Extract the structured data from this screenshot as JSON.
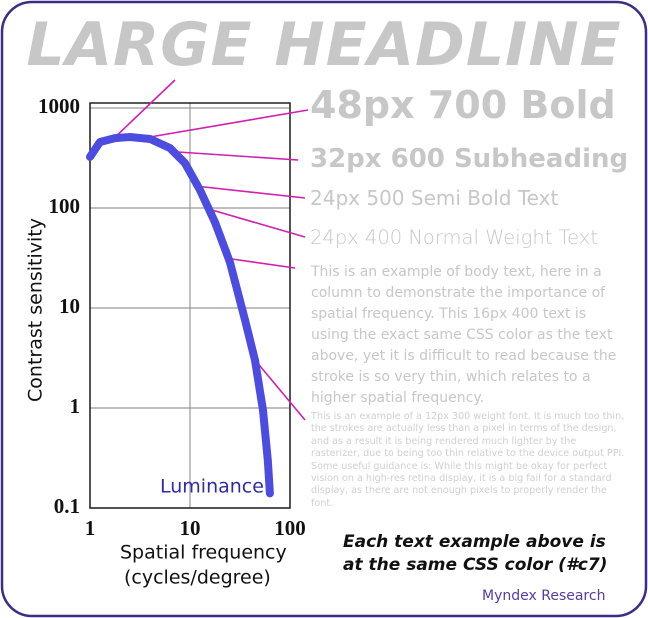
{
  "chart_data": {
    "type": "line",
    "xlabel": [
      "Spatial frequency",
      "(cycles/degree)"
    ],
    "ylabel": "Contrast sensitivity",
    "x": [
      1,
      1.26,
      1.78,
      2.5,
      4,
      6.3,
      8.9,
      12.6,
      17.8,
      25,
      35.5,
      44.7,
      53.7,
      60,
      63
    ],
    "series": [
      {
        "name": "Luminance",
        "color": "#4c4ce0",
        "values": [
          324,
          457,
          500,
          513,
          490,
          398,
          282,
          151,
          72,
          29,
          7.6,
          3,
          0.95,
          0.3,
          0.14
        ]
      }
    ],
    "xlim": [
      1,
      100
    ],
    "ylim": [
      0.1,
      1000
    ],
    "xticks": [
      1,
      10,
      100
    ],
    "yticks": [
      0.1,
      1,
      10,
      100,
      1000
    ],
    "xscale": "log",
    "yscale": "log",
    "grid": true
  },
  "headline": "LARGE HEADLINE",
  "samples": [
    "48px 700 Bold",
    "32px 600 Subheading",
    "24px 500 Semi Bold Text",
    "24px 400 Normal Weight Text"
  ],
  "body_text": "This is an example of body text, here in a column to demonstrate the importance of spatial frequency. This 16px 400 text is using the exact same CSS color as the text above, yet it is difficult to read because the stroke is so very thin, which relates to a higher spatial frequency.",
  "small_text": "This is an example of a 12px 300 weight font. It is much too thin, the strokes are actually less than a pixel in terms of the design, and as a result it is being rendered much lighter by the rasterizer, due to being too thin relative to the device output PPI. Some useful guidance is: While this might be okay for perfect vision on a high-res retina display, it is a big fail for a standard display, as there are not enough pixels to properly render the font.",
  "note": [
    "Each text example above is",
    "at the same CSS color (#c7)"
  ],
  "credit": "Myndex Research"
}
